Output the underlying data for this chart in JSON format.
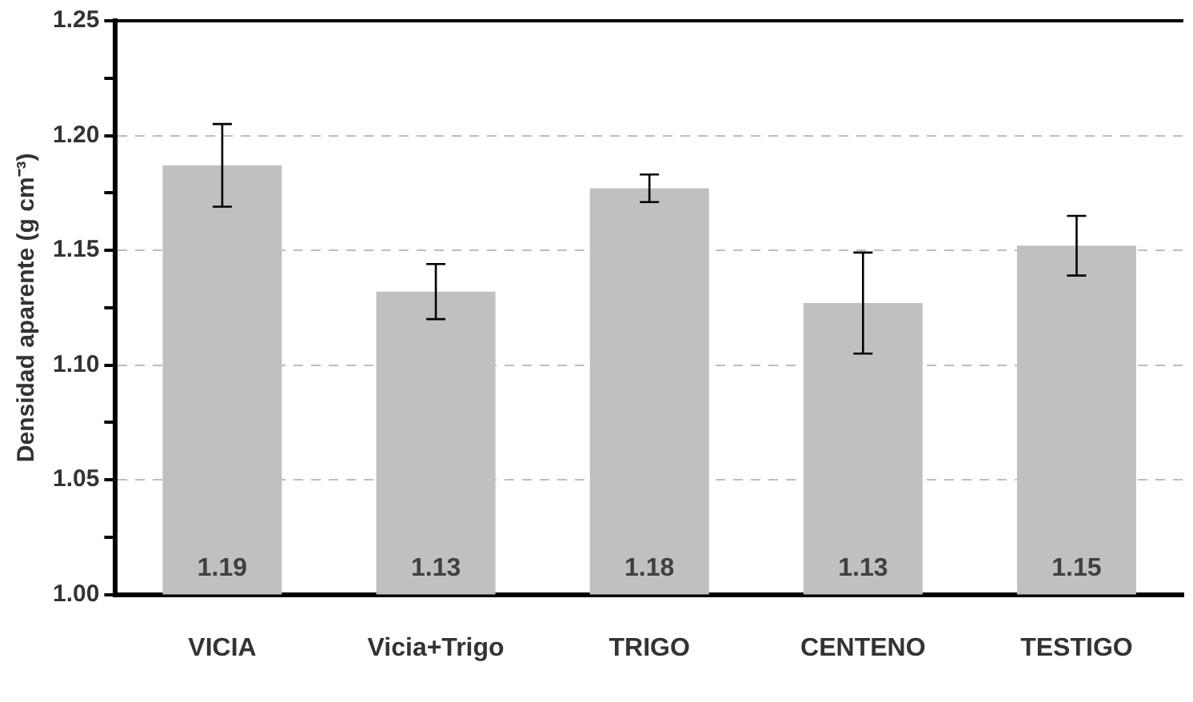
{
  "chart_data": {
    "type": "bar",
    "ylabel": "Densidad aparente (g cm⁻³)",
    "categories": [
      "VICIA",
      "Vicia+Trigo",
      "TRIGO",
      "CENTENO",
      "TESTIGO"
    ],
    "values": [
      1.187,
      1.132,
      1.177,
      1.127,
      1.152
    ],
    "errors": [
      0.018,
      0.012,
      0.006,
      0.022,
      0.013
    ],
    "value_labels": [
      "1.19",
      "1.13",
      "1.18",
      "1.13",
      "1.15"
    ],
    "color": "#c0c0c0",
    "ylim": [
      1.0,
      1.25
    ],
    "yticks": [
      {
        "value": 1.0,
        "label": "1.00"
      },
      {
        "value": 1.025,
        "label": null
      },
      {
        "value": 1.05,
        "label": "1.05"
      },
      {
        "value": 1.075,
        "label": null
      },
      {
        "value": 1.1,
        "label": "1.10"
      },
      {
        "value": 1.125,
        "label": null
      },
      {
        "value": 1.15,
        "label": "1.15"
      },
      {
        "value": 1.175,
        "label": null
      },
      {
        "value": 1.2,
        "label": "1.20"
      },
      {
        "value": 1.225,
        "label": null
      },
      {
        "value": 1.25,
        "label": "1.25"
      }
    ],
    "grid": "y",
    "legend": false
  }
}
